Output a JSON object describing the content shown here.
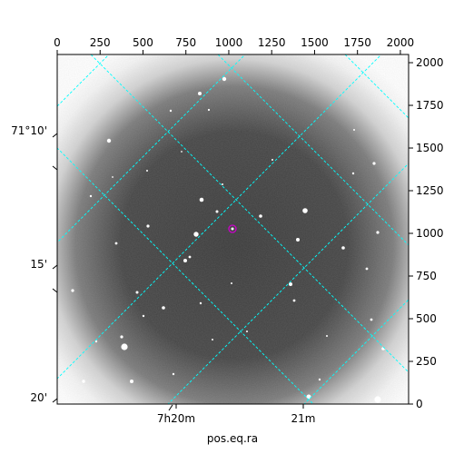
{
  "chart_data": {
    "type": "image",
    "title": "",
    "xlabel": "pos.eq.ra",
    "ylabel": "",
    "pixel_axes": {
      "x_ticks": [
        "0",
        "250",
        "500",
        "750",
        "1000",
        "1250",
        "1500",
        "1750",
        "2000"
      ],
      "y_ticks": [
        "0",
        "250",
        "500",
        "750",
        "1000",
        "1250",
        "1500",
        "1750",
        "2000"
      ],
      "xlim": [
        0,
        2048
      ],
      "ylim": [
        0,
        2048
      ]
    },
    "world_axes": {
      "ra_ticks": [
        "7h20m",
        "21m"
      ],
      "dec_ticks": [
        "71°10'",
        "15'",
        "20'"
      ]
    },
    "grid": true,
    "grid_color": "#00ffff",
    "colormap": "gray",
    "marker_color": "#cc00cc"
  },
  "colors": {
    "frame": "#000000",
    "background": "#ffffff"
  }
}
